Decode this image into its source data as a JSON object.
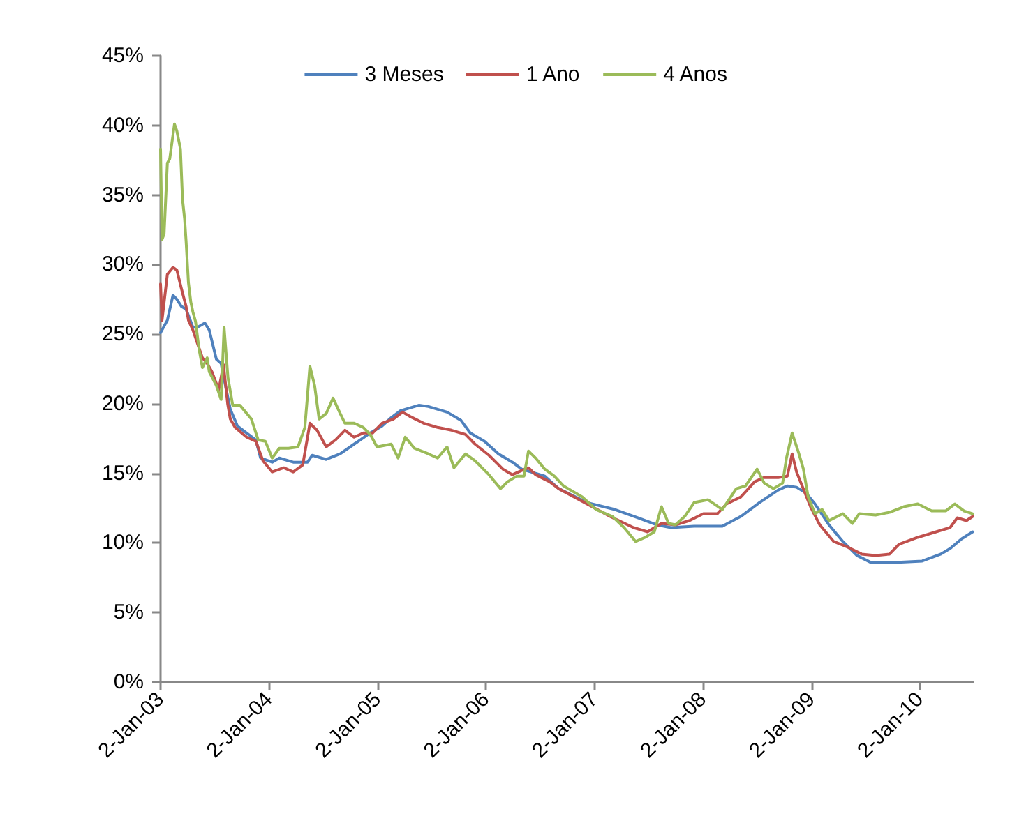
{
  "chart_data": {
    "type": "line",
    "xlim": [
      "2003-01-02",
      "2010-06-30"
    ],
    "ylim": [
      0,
      45
    ],
    "xticks": [
      {
        "value": "2003-01-02",
        "label": "2-Jan-03"
      },
      {
        "value": "2004-01-02",
        "label": "2-Jan-04"
      },
      {
        "value": "2005-01-02",
        "label": "2-Jan-05"
      },
      {
        "value": "2006-01-02",
        "label": "2-Jan-06"
      },
      {
        "value": "2007-01-02",
        "label": "2-Jan-07"
      },
      {
        "value": "2008-01-02",
        "label": "2-Jan-08"
      },
      {
        "value": "2009-01-02",
        "label": "2-Jan-09"
      },
      {
        "value": "2010-01-02",
        "label": "2-Jan-10"
      }
    ],
    "yticks": [
      {
        "value": 0,
        "label": "0%"
      },
      {
        "value": 5,
        "label": "5%"
      },
      {
        "value": 10,
        "label": "10%"
      },
      {
        "value": 15,
        "label": "15%"
      },
      {
        "value": 20,
        "label": "20%"
      },
      {
        "value": 25,
        "label": "25%"
      },
      {
        "value": 30,
        "label": "30%"
      },
      {
        "value": 35,
        "label": "35%"
      },
      {
        "value": 40,
        "label": "40%"
      },
      {
        "value": 45,
        "label": "45%"
      }
    ],
    "grid": false,
    "legend": "top",
    "marker": "none",
    "series": [
      {
        "name": "3 Meses",
        "color": "#4f81bd",
        "x": [
          "2003-01-02",
          "2003-01-25",
          "2003-02-13",
          "2003-02-26",
          "2003-03-13",
          "2003-03-29",
          "2003-04-21",
          "2003-05-07",
          "2003-05-31",
          "2003-06-15",
          "2003-07-09",
          "2003-07-25",
          "2003-08-02",
          "2003-08-25",
          "2003-09-18",
          "2003-10-19",
          "2003-11-19",
          "2003-12-05",
          "2004-01-13",
          "2004-02-06",
          "2004-03-24",
          "2004-05-11",
          "2004-05-27",
          "2004-07-13",
          "2004-08-29",
          "2004-10-15",
          "2004-12-01",
          "2005-01-17",
          "2005-02-17",
          "2005-03-20",
          "2005-05-22",
          "2005-06-22",
          "2005-08-24",
          "2005-10-10",
          "2005-11-10",
          "2005-12-28",
          "2006-02-13",
          "2006-04-01",
          "2006-05-02",
          "2006-06-02",
          "2006-07-19",
          "2006-09-04",
          "2006-12-08",
          "2007-03-12",
          "2007-05-30",
          "2007-08-01",
          "2007-09-17",
          "2007-12-04",
          "2008-03-08",
          "2008-05-09",
          "2008-07-11",
          "2008-09-12",
          "2008-10-13",
          "2008-11-13",
          "2008-12-14",
          "2009-01-14",
          "2009-03-02",
          "2009-04-18",
          "2009-06-04",
          "2009-07-21",
          "2009-10-08",
          "2010-01-10",
          "2010-03-14",
          "2010-04-14",
          "2010-05-23",
          "2010-06-29"
        ],
        "values": [
          25.1,
          26.0,
          27.8,
          27.5,
          27.0,
          26.8,
          25.5,
          25.5,
          25.8,
          25.3,
          23.2,
          22.9,
          22.0,
          19.6,
          18.4,
          17.9,
          17.4,
          16.1,
          15.8,
          16.1,
          15.8,
          15.8,
          16.3,
          16.0,
          16.4,
          17.1,
          17.8,
          18.4,
          19.0,
          19.5,
          19.9,
          19.8,
          19.4,
          18.8,
          17.9,
          17.3,
          16.4,
          15.8,
          15.3,
          15.1,
          14.8,
          13.9,
          12.9,
          12.4,
          11.8,
          11.3,
          11.1,
          11.2,
          11.2,
          11.9,
          12.9,
          13.8,
          14.1,
          14.0,
          13.6,
          12.8,
          11.3,
          10.1,
          9.1,
          8.6,
          8.6,
          8.7,
          9.2,
          9.6,
          10.3,
          10.8
        ]
      },
      {
        "name": "1 Ano",
        "color": "#c0504d",
        "x": [
          "2003-01-02",
          "2003-01-07",
          "2003-01-25",
          "2003-02-13",
          "2003-02-26",
          "2003-03-13",
          "2003-03-29",
          "2003-04-06",
          "2003-04-21",
          "2003-05-07",
          "2003-05-23",
          "2003-06-08",
          "2003-06-24",
          "2003-07-17",
          "2003-08-02",
          "2003-08-16",
          "2003-08-25",
          "2003-09-10",
          "2003-10-19",
          "2003-11-19",
          "2003-12-13",
          "2004-01-13",
          "2004-02-21",
          "2004-03-24",
          "2004-04-25",
          "2004-05-19",
          "2004-06-12",
          "2004-07-13",
          "2004-08-13",
          "2004-09-14",
          "2004-10-15",
          "2004-11-15",
          "2004-12-16",
          "2005-01-17",
          "2005-02-24",
          "2005-03-27",
          "2005-04-20",
          "2005-06-06",
          "2005-07-23",
          "2005-09-08",
          "2005-10-25",
          "2005-11-26",
          "2006-01-12",
          "2006-02-28",
          "2006-04-01",
          "2006-05-02",
          "2006-05-25",
          "2006-06-18",
          "2006-08-04",
          "2006-09-04",
          "2006-12-08",
          "2007-02-24",
          "2007-05-14",
          "2007-06-30",
          "2007-08-16",
          "2007-10-02",
          "2007-11-18",
          "2008-01-04",
          "2008-02-20",
          "2008-03-22",
          "2008-05-09",
          "2008-06-25",
          "2008-07-27",
          "2008-09-12",
          "2008-10-13",
          "2008-10-29",
          "2008-11-13",
          "2008-11-28",
          "2008-12-30",
          "2009-01-30",
          "2009-03-18",
          "2009-05-04",
          "2009-06-20",
          "2009-08-06",
          "2009-09-22",
          "2009-10-24",
          "2009-12-26",
          "2010-02-26",
          "2010-04-14",
          "2010-05-08",
          "2010-06-08",
          "2010-06-29"
        ],
        "values": [
          28.6,
          26.0,
          29.3,
          29.8,
          29.6,
          28.3,
          27.0,
          26.0,
          25.3,
          24.3,
          23.3,
          22.9,
          22.3,
          21.0,
          22.8,
          20.0,
          18.9,
          18.3,
          17.6,
          17.3,
          15.9,
          15.1,
          15.4,
          15.1,
          15.6,
          18.6,
          18.1,
          16.9,
          17.4,
          18.1,
          17.6,
          17.9,
          17.9,
          18.6,
          18.9,
          19.4,
          19.1,
          18.6,
          18.3,
          18.1,
          17.8,
          17.1,
          16.3,
          15.3,
          14.9,
          15.2,
          15.4,
          14.9,
          14.4,
          13.9,
          12.8,
          11.9,
          11.1,
          10.8,
          11.4,
          11.3,
          11.6,
          12.1,
          12.1,
          12.8,
          13.3,
          14.4,
          14.7,
          14.7,
          14.8,
          16.4,
          15.1,
          14.3,
          12.6,
          11.3,
          10.1,
          9.7,
          9.2,
          9.1,
          9.2,
          9.9,
          10.4,
          10.8,
          11.1,
          11.8,
          11.6,
          11.9
        ]
      },
      {
        "name": "4 Anos",
        "color": "#9bbb59",
        "x": [
          "2003-01-02",
          "2003-01-07",
          "2003-01-14",
          "2003-01-25",
          "2003-02-02",
          "2003-02-18",
          "2003-02-26",
          "2003-03-10",
          "2003-03-17",
          "2003-03-24",
          "2003-03-29",
          "2003-04-06",
          "2003-04-14",
          "2003-04-21",
          "2003-04-30",
          "2003-05-12",
          "2003-05-23",
          "2003-06-08",
          "2003-06-15",
          "2003-07-09",
          "2003-07-25",
          "2003-08-04",
          "2003-08-17",
          "2003-09-02",
          "2003-09-26",
          "2003-11-04",
          "2003-11-27",
          "2003-12-21",
          "2004-01-13",
          "2004-02-06",
          "2004-03-08",
          "2004-04-09",
          "2004-05-02",
          "2004-05-19",
          "2004-06-04",
          "2004-06-19",
          "2004-07-13",
          "2004-08-05",
          "2004-08-29",
          "2004-09-14",
          "2004-10-15",
          "2004-11-15",
          "2004-12-08",
          "2004-12-31",
          "2005-02-17",
          "2005-03-12",
          "2005-04-05",
          "2005-05-06",
          "2005-06-22",
          "2005-07-23",
          "2005-08-24",
          "2005-09-16",
          "2005-10-25",
          "2005-11-26",
          "2006-01-12",
          "2006-02-20",
          "2006-03-16",
          "2006-04-16",
          "2006-05-10",
          "2006-05-25",
          "2006-06-18",
          "2006-07-19",
          "2006-08-20",
          "2006-09-20",
          "2006-11-22",
          "2007-01-08",
          "2007-03-04",
          "2007-04-12",
          "2007-05-21",
          "2007-06-22",
          "2007-07-23",
          "2007-08-16",
          "2007-09-09",
          "2007-10-02",
          "2007-11-02",
          "2007-12-04",
          "2008-01-20",
          "2008-03-08",
          "2008-04-24",
          "2008-05-25",
          "2008-07-03",
          "2008-07-27",
          "2008-08-27",
          "2008-09-27",
          "2008-10-10",
          "2008-10-29",
          "2008-11-21",
          "2008-12-06",
          "2008-12-22",
          "2009-01-14",
          "2009-02-07",
          "2009-03-02",
          "2009-04-18",
          "2009-05-20",
          "2009-06-12",
          "2009-08-06",
          "2009-09-22",
          "2009-11-09",
          "2009-12-26",
          "2010-02-11",
          "2010-03-30",
          "2010-04-30",
          "2010-05-31",
          "2010-06-29"
        ],
        "values": [
          38.3,
          31.8,
          32.2,
          37.3,
          37.6,
          40.1,
          39.6,
          38.3,
          34.7,
          33.3,
          31.7,
          28.7,
          27.3,
          26.6,
          25.9,
          23.9,
          22.6,
          23.3,
          22.3,
          21.3,
          20.3,
          25.5,
          21.9,
          19.9,
          19.9,
          18.9,
          17.4,
          17.3,
          16.1,
          16.8,
          16.8,
          16.9,
          18.3,
          22.7,
          21.3,
          18.9,
          19.3,
          20.4,
          19.3,
          18.6,
          18.6,
          18.3,
          17.8,
          16.9,
          17.1,
          16.1,
          17.6,
          16.8,
          16.4,
          16.1,
          16.9,
          15.4,
          16.4,
          15.9,
          14.9,
          13.9,
          14.4,
          14.8,
          14.8,
          16.6,
          16.1,
          15.3,
          14.8,
          14.1,
          13.3,
          12.4,
          11.9,
          11.1,
          10.1,
          10.4,
          10.8,
          12.6,
          11.4,
          11.3,
          11.9,
          12.9,
          13.1,
          12.4,
          13.9,
          14.1,
          15.3,
          14.3,
          13.9,
          14.3,
          16.1,
          17.9,
          16.4,
          15.3,
          13.3,
          12.1,
          12.4,
          11.6,
          12.1,
          11.4,
          12.1,
          12.0,
          12.2,
          12.6,
          12.8,
          12.3,
          12.3,
          12.8,
          12.3,
          12.1
        ]
      }
    ]
  }
}
